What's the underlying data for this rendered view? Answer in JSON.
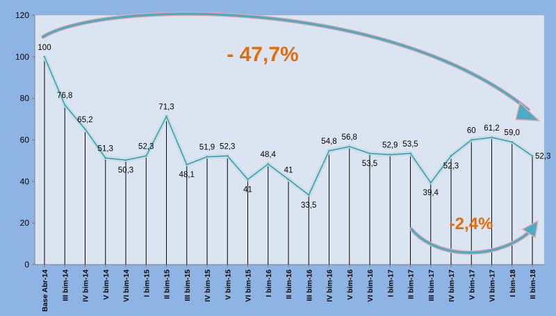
{
  "chart_data": {
    "type": "line",
    "categories": [
      "Base Abr-14",
      "III bim-14",
      "IV bim-14",
      "V bim-14",
      "VI bim-14",
      "I bim-15",
      "II bim-15",
      "III bim-15",
      "IV bim-15",
      "V bim-15",
      "VI bim-15",
      "I bim-16",
      "II bim-16",
      "III bim-16",
      "IV bim-16",
      "V bim-16",
      "VI bim-16",
      "I bim-17",
      "II bim-17",
      "III bim-17",
      "IV bim-17",
      "V bim-17",
      "VI bim-17",
      "I bim-18",
      "II bim-18"
    ],
    "values": [
      100,
      76.8,
      65.2,
      51.3,
      50.3,
      52.3,
      71.3,
      48.1,
      51.9,
      52.3,
      41,
      48.4,
      41,
      33.5,
      54.8,
      56.8,
      53.5,
      52.9,
      53.5,
      39.4,
      52.3,
      60,
      61.2,
      59.0,
      52.3
    ],
    "value_labels": [
      "100",
      "76,8",
      "65,2",
      "51,3",
      "50,3",
      "52,3",
      "71,3",
      "48,1",
      "51,9",
      "52,3",
      "41",
      "48,4",
      "41",
      "33,5",
      "54,8",
      "56,8",
      "53,5",
      "52,9",
      "53,5",
      "39,4",
      "52,3",
      "60",
      "61,2",
      "59,0",
      "52,3"
    ],
    "yticks": [
      0,
      20,
      40,
      60,
      80,
      100,
      120
    ],
    "ylim": [
      0,
      120
    ],
    "annotations": [
      {
        "text": "- 47,7%",
        "color": "#e46c0a"
      },
      {
        "text": "-2,4%",
        "color": "#e46c0a"
      }
    ],
    "colors": {
      "background": "#8eb4e3",
      "plot_area": "#dbe5f1",
      "line": "#4bacc6",
      "arrow": "#4bacc6",
      "arrow_outline": "#f2a7a7",
      "annotation": "#e46c0a"
    },
    "grid": false
  }
}
